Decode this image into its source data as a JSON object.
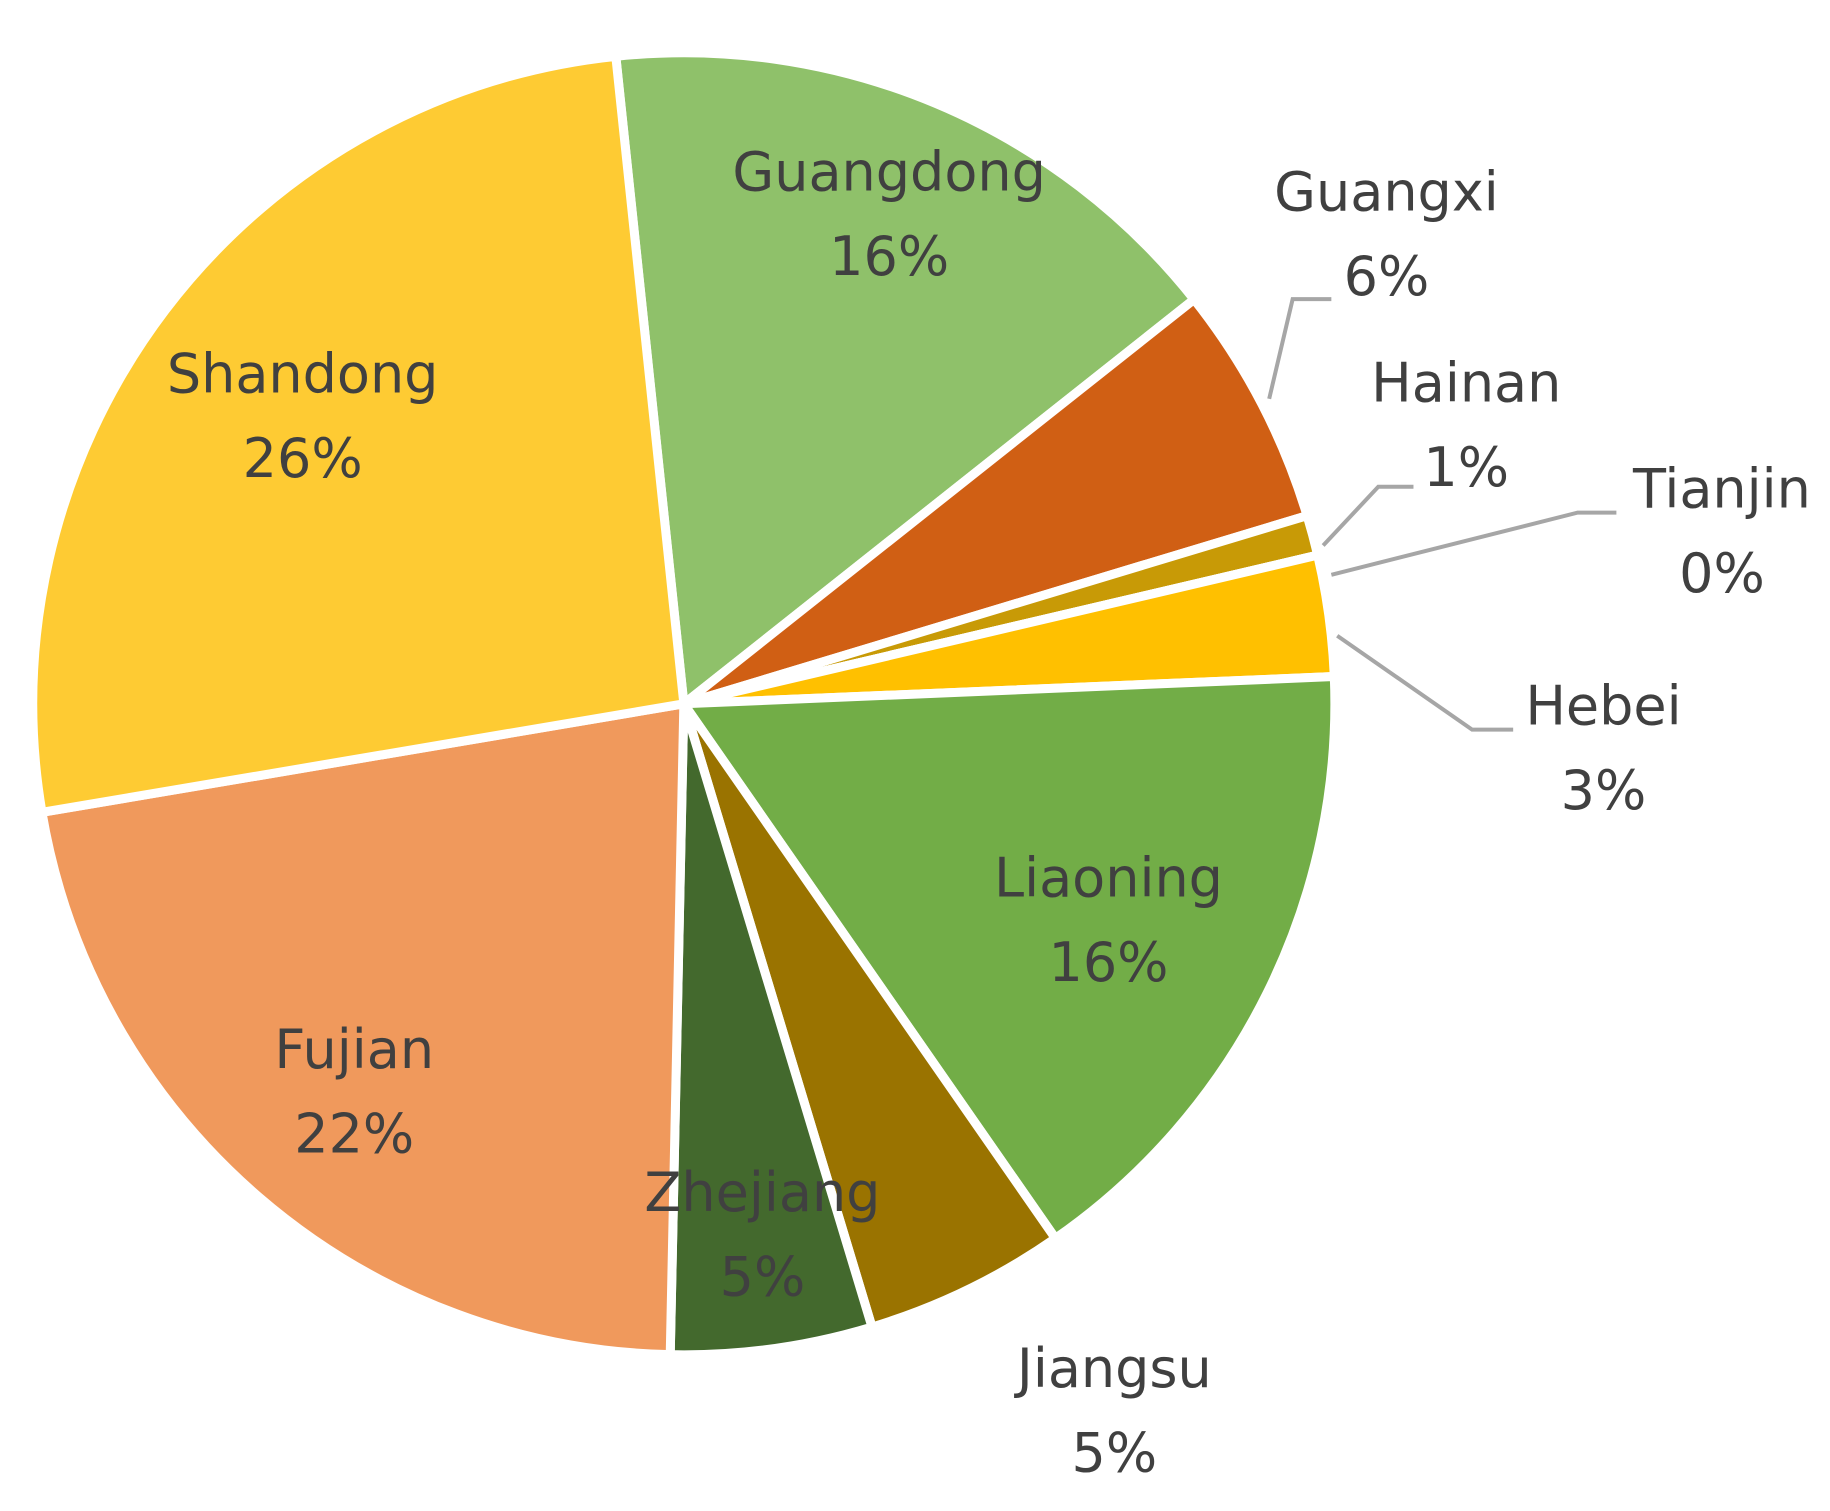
{
  "chart_data": {
    "type": "pie",
    "categories": [
      "Guangdong",
      "Guangxi",
      "Hainan",
      "Tianjin",
      "Hebei",
      "Liaoning",
      "Jiangsu",
      "Zhejiang",
      "Fujian",
      "Shandong"
    ],
    "values": [
      16,
      6,
      1,
      0,
      3,
      16,
      5,
      5,
      22,
      26
    ],
    "value_labels": [
      "16%",
      "6%",
      "1%",
      "0%",
      "3%",
      "16%",
      "5%",
      "5%",
      "22%",
      "26%"
    ],
    "colors": [
      "#8fc16a",
      "#d05f14",
      "#c89a06",
      "#a5a5a5",
      "#ffc000",
      "#72ad47",
      "#9a7300",
      "#43692d",
      "#f0995c",
      "#fecb33"
    ]
  }
}
